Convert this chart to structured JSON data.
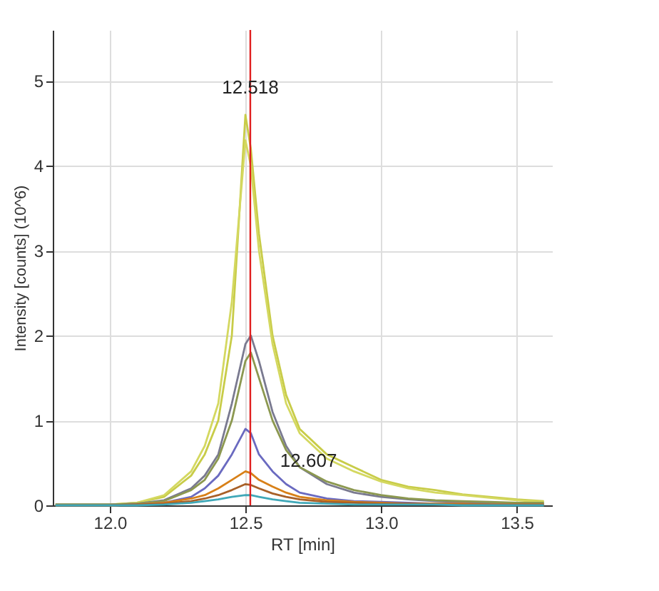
{
  "chart_data": {
    "type": "line",
    "xlabel": "RT [min]",
    "ylabel": "Intensity [counts] (10^6)",
    "x": [
      11.8,
      11.9,
      12.0,
      12.1,
      12.2,
      12.3,
      12.35,
      12.4,
      12.45,
      12.5,
      12.52,
      12.55,
      12.6,
      12.65,
      12.7,
      12.8,
      12.9,
      13.0,
      13.1,
      13.2,
      13.3,
      13.4,
      13.5,
      13.6
    ],
    "series": [
      {
        "color": "#c8cc48",
        "values": [
          0.01,
          0.01,
          0.01,
          0.03,
          0.1,
          0.35,
          0.6,
          1.0,
          2.0,
          4.6,
          4.2,
          3.2,
          2.0,
          1.3,
          0.9,
          0.6,
          0.45,
          0.3,
          0.22,
          0.18,
          0.13,
          0.1,
          0.07,
          0.05
        ]
      },
      {
        "color": "#d4d860",
        "values": [
          0.01,
          0.01,
          0.01,
          0.03,
          0.12,
          0.4,
          0.7,
          1.2,
          2.4,
          4.3,
          4.0,
          3.0,
          1.9,
          1.2,
          0.85,
          0.55,
          0.4,
          0.28,
          0.2,
          0.15,
          0.12,
          0.09,
          0.06,
          0.04
        ]
      },
      {
        "color": "#7a7a90",
        "values": [
          0.01,
          0.01,
          0.01,
          0.02,
          0.06,
          0.2,
          0.35,
          0.6,
          1.2,
          1.9,
          2.0,
          1.7,
          1.1,
          0.7,
          0.45,
          0.25,
          0.15,
          0.1,
          0.07,
          0.05,
          0.04,
          0.03,
          0.03,
          0.02
        ]
      },
      {
        "color": "#8c9850",
        "values": [
          0.01,
          0.01,
          0.01,
          0.02,
          0.05,
          0.18,
          0.3,
          0.55,
          1.0,
          1.7,
          1.8,
          1.5,
          1.0,
          0.65,
          0.45,
          0.28,
          0.18,
          0.12,
          0.08,
          0.06,
          0.05,
          0.04,
          0.03,
          0.03
        ]
      },
      {
        "color": "#6a6ac0",
        "values": [
          null,
          null,
          0.0,
          0.01,
          0.03,
          0.1,
          0.2,
          0.35,
          0.6,
          0.9,
          0.85,
          0.6,
          0.4,
          0.25,
          0.15,
          0.08,
          0.05,
          0.04,
          0.03,
          0.02,
          0.02,
          0.01,
          null,
          null
        ]
      },
      {
        "color": "#d88018",
        "values": [
          null,
          null,
          0.0,
          0.01,
          0.03,
          0.08,
          0.12,
          0.2,
          0.3,
          0.4,
          0.38,
          0.3,
          0.22,
          0.15,
          0.1,
          0.06,
          0.04,
          0.03,
          0.02,
          0.02,
          0.02,
          0.01,
          0.01,
          0.01
        ]
      },
      {
        "color": "#a86028",
        "values": [
          0.0,
          0.0,
          0.0,
          0.01,
          0.02,
          0.05,
          0.08,
          0.12,
          0.18,
          0.25,
          0.24,
          0.2,
          0.14,
          0.1,
          0.07,
          0.04,
          0.03,
          0.02,
          0.02,
          0.01,
          0.01,
          0.01,
          0.01,
          0.01
        ]
      },
      {
        "color": "#40a8b8",
        "values": [
          0.0,
          0.0,
          0.0,
          0.0,
          0.01,
          0.03,
          0.05,
          0.07,
          0.1,
          0.12,
          0.12,
          0.1,
          0.07,
          0.05,
          0.03,
          0.02,
          0.01,
          0.01,
          0.01,
          0.01,
          0.0,
          0.0,
          0.0,
          0.0
        ]
      }
    ],
    "xlim": [
      11.79,
      13.63
    ],
    "ylim": [
      0,
      5.6
    ],
    "xticks": [
      {
        "value": 12,
        "label": "12.0"
      },
      {
        "value": 12.5,
        "label": "12.5"
      },
      {
        "value": 13,
        "label": "13.0"
      },
      {
        "value": 13.5,
        "label": "13.5"
      }
    ],
    "yticks": [
      0,
      1,
      2,
      3,
      4,
      5
    ],
    "grid": true,
    "line_style": "solid",
    "ref_lines": [
      {
        "axis": "x",
        "value": 12.518,
        "label": "12.518",
        "color": "#e02020"
      }
    ],
    "annotations": [
      {
        "text": "12.607",
        "x": 12.607,
        "y": 0.52
      }
    ]
  }
}
